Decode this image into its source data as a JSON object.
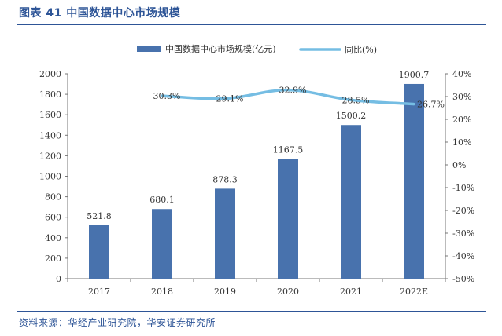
{
  "header": {
    "title": "图表 41 中国数据中心市场规模"
  },
  "footer": {
    "source": "资料来源：华经产业研究院，华安证券研究所"
  },
  "colors": {
    "bar": "#4872ad",
    "line": "#75bde3",
    "title": "#2e5597"
  },
  "chart_data": {
    "type": "bar",
    "categories": [
      "2017",
      "2018",
      "2019",
      "2020",
      "2021",
      "2022E"
    ],
    "series": [
      {
        "name": "中国数据中心市场规模(亿元)",
        "type": "bar",
        "axis": "left",
        "values": [
          521.8,
          680.1,
          878.3,
          1167.5,
          1500.2,
          1900.7
        ],
        "labels": [
          "521.8",
          "680.1",
          "878.3",
          "1167.5",
          "1500.2",
          "1900.7"
        ]
      },
      {
        "name": "同比(%)",
        "type": "line",
        "axis": "right",
        "values": [
          null,
          30.3,
          29.1,
          32.9,
          28.5,
          26.7
        ],
        "labels": [
          "",
          "30.3%",
          "29.1%",
          "32.9%",
          "28.5%",
          "26.7%"
        ]
      }
    ],
    "y_left": {
      "min": 0,
      "max": 2000,
      "step": 200,
      "ticks": [
        "0",
        "200",
        "400",
        "600",
        "800",
        "1000",
        "1200",
        "1400",
        "1600",
        "1800",
        "2000"
      ]
    },
    "y_right": {
      "min": -50,
      "max": 40,
      "step": 10,
      "ticks": [
        "-50%",
        "-40%",
        "-30%",
        "-20%",
        "-10%",
        "0%",
        "10%",
        "20%",
        "30%",
        "40%"
      ]
    },
    "legend_position": "top",
    "grid": false
  }
}
